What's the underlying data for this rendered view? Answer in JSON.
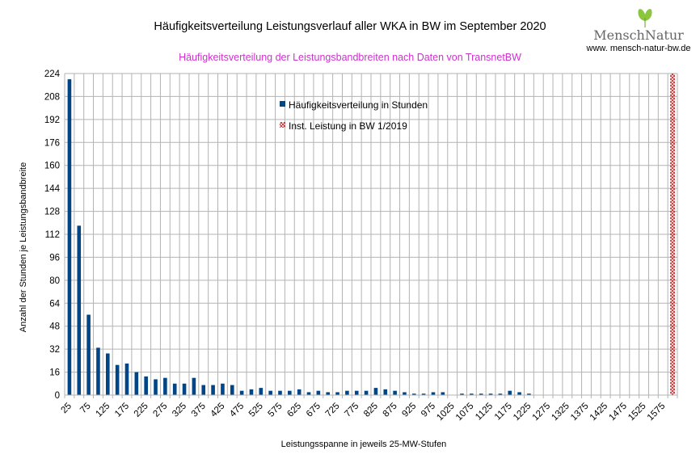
{
  "logo": {
    "name": "MenschNatur",
    "url": "www. mensch-natur-bw.de"
  },
  "colors": {
    "bar": "#004586",
    "installed": "#cc2222",
    "subtitle": "#cc33cc",
    "grid": "#b3b3b3",
    "logo_leaf": "#8cc63f"
  },
  "chart_data": {
    "type": "bar",
    "title": "Häufigkeitsverteilung Leistungsverlauf aller WKA in BW im September 2020",
    "subtitle": "Häufigkeitsverteilung der Leistungsbandbreiten nach Daten von TransnetBW",
    "xlabel": "Leistungsspanne in jeweils 25-MW-Stufen",
    "ylabel": "Anzahl der Stunden je Leistungsbandbreite",
    "ylim": [
      0,
      224
    ],
    "yticks": [
      0,
      16,
      32,
      48,
      64,
      80,
      96,
      112,
      128,
      144,
      160,
      176,
      192,
      208,
      224
    ],
    "grid": true,
    "legend_position": "top-center",
    "categories": [
      25,
      50,
      75,
      100,
      125,
      150,
      175,
      200,
      225,
      250,
      275,
      300,
      325,
      350,
      375,
      400,
      425,
      450,
      475,
      500,
      525,
      550,
      575,
      600,
      625,
      650,
      675,
      700,
      725,
      750,
      775,
      800,
      825,
      850,
      875,
      900,
      925,
      950,
      975,
      1000,
      1025,
      1050,
      1075,
      1100,
      1125,
      1150,
      1175,
      1200,
      1225,
      1250,
      1275,
      1300,
      1325,
      1350,
      1375,
      1400,
      1425,
      1450,
      1475,
      1500,
      1525,
      1550,
      1575,
      1600
    ],
    "xtick_labels": [
      "25",
      "75",
      "125",
      "175",
      "225",
      "275",
      "325",
      "375",
      "425",
      "475",
      "525",
      "575",
      "625",
      "675",
      "725",
      "775",
      "825",
      "875",
      "925",
      "975",
      "1025",
      "1075",
      "1125",
      "1175",
      "1225",
      "1275",
      "1325",
      "1375",
      "1425",
      "1475",
      "1525",
      "1575"
    ],
    "series": [
      {
        "name": "Häufigkeitsverteilung in Stunden",
        "values": [
          220,
          118,
          56,
          33,
          29,
          21,
          22,
          16,
          13,
          11,
          12,
          8,
          8,
          12,
          7,
          7,
          8,
          7,
          3,
          4,
          5,
          3,
          3,
          3,
          4,
          2,
          3,
          2,
          2,
          3,
          3,
          3,
          5,
          4,
          3,
          2,
          1,
          1,
          2,
          2,
          0,
          1,
          1,
          1,
          1,
          1,
          3,
          2,
          1,
          0,
          0,
          0,
          0,
          0,
          0,
          0,
          0,
          0,
          0,
          0,
          0,
          0,
          0,
          0
        ]
      },
      {
        "name": "Inst. Leistung in BW 1/2019",
        "category": 1600,
        "value": 224
      }
    ]
  }
}
